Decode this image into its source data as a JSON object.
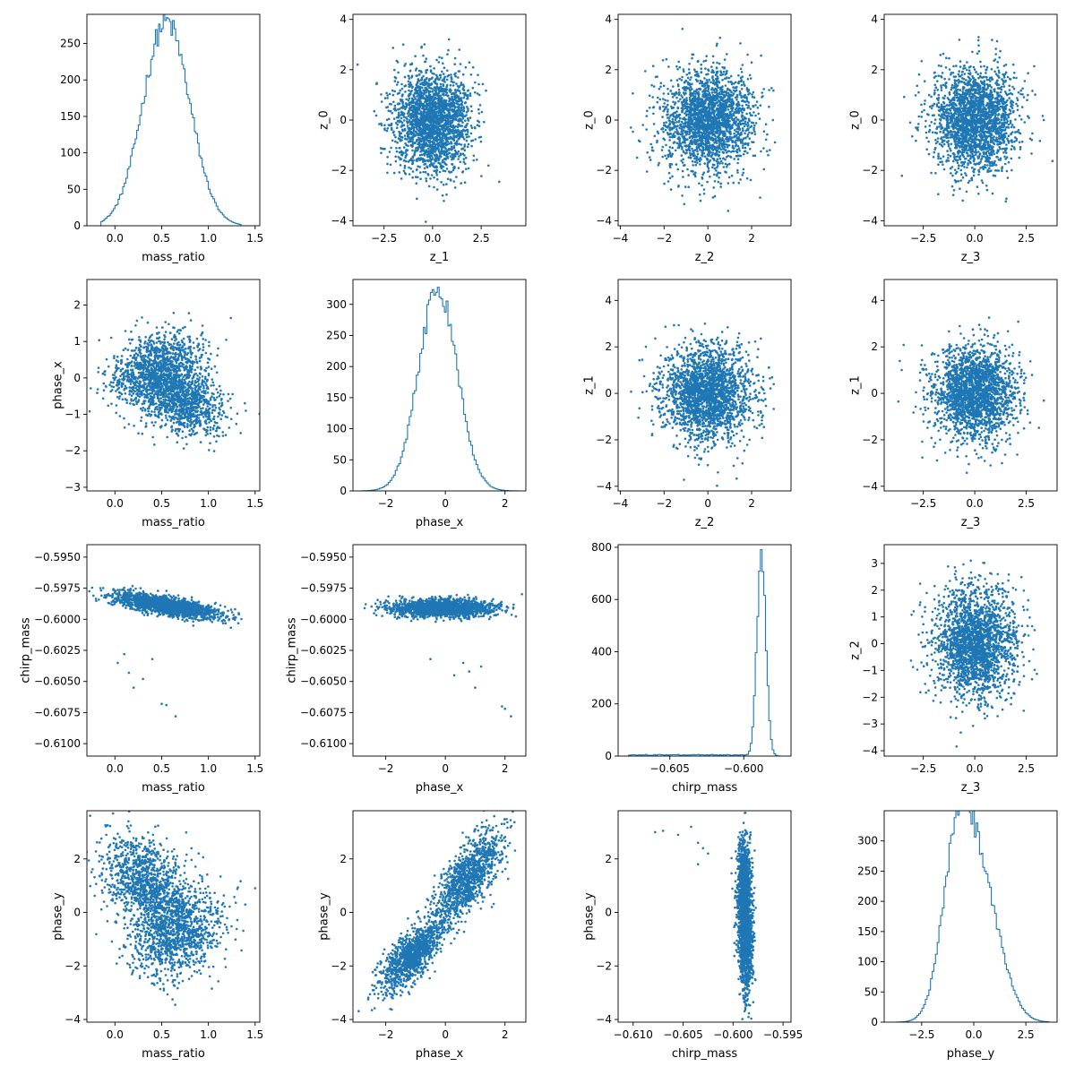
{
  "colors": {
    "series": "#1f77b4",
    "axis": "#000000",
    "background": "#ffffff"
  },
  "chart_data": {
    "type": "pairplot",
    "layout": {
      "rows": 4,
      "cols": 4
    },
    "variables": [
      "mass_ratio",
      "phase_x",
      "chirp_mass",
      "phase_y"
    ],
    "panels": [
      {
        "row": 0,
        "col": 0,
        "type": "histogram",
        "xlabel": "mass_ratio",
        "ylabel": "",
        "xlim": [
          -0.3,
          1.55
        ],
        "ylim": [
          0,
          290
        ],
        "xticks": [
          0.0,
          0.5,
          1.0,
          1.5
        ],
        "xtick_labels": [
          "0.0",
          "0.5",
          "1.0",
          "1.5"
        ],
        "yticks": [
          0,
          50,
          100,
          150,
          200,
          250
        ],
        "ytick_labels": [
          "0",
          "50",
          "100",
          "150",
          "200",
          "250"
        ],
        "hist": {
          "mean": 0.55,
          "std": 0.25,
          "peak": 280,
          "range": [
            -0.15,
            1.35
          ]
        }
      },
      {
        "row": 0,
        "col": 1,
        "type": "scatter",
        "xlabel": "z_1",
        "ylabel": "z_0",
        "xlim": [
          -4.1,
          4.8
        ],
        "ylim": [
          -4.2,
          4.2
        ],
        "xticks": [
          -2.5,
          0.0,
          2.5
        ],
        "xtick_labels": [
          "−2.5",
          "0.0",
          "2.5"
        ],
        "yticks": [
          -4,
          -2,
          0,
          2,
          4
        ],
        "ytick_labels": [
          "−4",
          "−2",
          "0",
          "2",
          "4"
        ],
        "cloud": {
          "kind": "gauss2d",
          "mx": 0,
          "sx": 1,
          "my": 0,
          "sy": 1,
          "n": 2200
        }
      },
      {
        "row": 0,
        "col": 2,
        "type": "scatter",
        "xlabel": "z_2",
        "ylabel": "z_0",
        "xlim": [
          -4.1,
          3.8
        ],
        "ylim": [
          -4.2,
          4.2
        ],
        "xticks": [
          -4,
          -2,
          0,
          2
        ],
        "xtick_labels": [
          "−4",
          "−2",
          "0",
          "2"
        ],
        "yticks": [
          -4,
          -2,
          0,
          2,
          4
        ],
        "ytick_labels": [
          "−4",
          "−2",
          "0",
          "2",
          "4"
        ],
        "cloud": {
          "kind": "gauss2d",
          "mx": 0,
          "sx": 1,
          "my": 0,
          "sy": 1,
          "n": 2200
        }
      },
      {
        "row": 0,
        "col": 3,
        "type": "scatter",
        "xlabel": "z_3",
        "ylabel": "z_0",
        "xlim": [
          -4.4,
          4.0
        ],
        "ylim": [
          -4.2,
          4.2
        ],
        "xticks": [
          -2.5,
          0.0,
          2.5
        ],
        "xtick_labels": [
          "−2.5",
          "0.0",
          "2.5"
        ],
        "yticks": [
          -4,
          -2,
          0,
          2,
          4
        ],
        "ytick_labels": [
          "−4",
          "−2",
          "0",
          "2",
          "4"
        ],
        "cloud": {
          "kind": "gauss2d",
          "mx": 0,
          "sx": 1,
          "my": 0,
          "sy": 1,
          "n": 2200
        }
      },
      {
        "row": 1,
        "col": 0,
        "type": "scatter",
        "xlabel": "mass_ratio",
        "ylabel": "phase_x",
        "xlim": [
          -0.3,
          1.55
        ],
        "ylim": [
          -3.1,
          2.7
        ],
        "xticks": [
          0.0,
          0.5,
          1.0,
          1.5
        ],
        "xtick_labels": [
          "0.0",
          "0.5",
          "1.0",
          "1.5"
        ],
        "yticks": [
          -3,
          -2,
          -1,
          0,
          1,
          2
        ],
        "ytick_labels": [
          "−3",
          "−2",
          "−1",
          "0",
          "1",
          "2"
        ],
        "cloud": {
          "kind": "bimodal",
          "n": 2200,
          "a": {
            "mx": 0.45,
            "sx": 0.25,
            "my": 0.3,
            "sy": 0.45,
            "slope": 0.6
          },
          "b": {
            "mx": 0.7,
            "sx": 0.22,
            "my": -0.6,
            "sy": 0.45,
            "slope": -0.7
          }
        }
      },
      {
        "row": 1,
        "col": 1,
        "type": "histogram",
        "xlabel": "phase_x",
        "ylabel": "",
        "xlim": [
          -3.1,
          2.7
        ],
        "ylim": [
          0,
          340
        ],
        "xticks": [
          -2,
          0,
          2
        ],
        "xtick_labels": [
          "−2",
          "0",
          "2"
        ],
        "yticks": [
          0,
          50,
          100,
          150,
          200,
          250,
          300
        ],
        "ytick_labels": [
          "0",
          "50",
          "100",
          "150",
          "200",
          "250",
          "300"
        ],
        "hist": {
          "mean": -0.25,
          "std": 0.65,
          "peak": 325,
          "range": [
            -2.8,
            2.5
          ]
        }
      },
      {
        "row": 1,
        "col": 2,
        "type": "scatter",
        "xlabel": "z_2",
        "ylabel": "z_1",
        "xlim": [
          -4.1,
          3.8
        ],
        "ylim": [
          -4.2,
          4.9
        ],
        "xticks": [
          -4,
          -2,
          0,
          2
        ],
        "xtick_labels": [
          "−4",
          "−2",
          "0",
          "2"
        ],
        "yticks": [
          -4,
          -2,
          0,
          2,
          4
        ],
        "ytick_labels": [
          "−4",
          "−2",
          "0",
          "2",
          "4"
        ],
        "cloud": {
          "kind": "gauss2d",
          "mx": 0,
          "sx": 1,
          "my": 0,
          "sy": 1,
          "n": 2200
        }
      },
      {
        "row": 1,
        "col": 3,
        "type": "scatter",
        "xlabel": "z_3",
        "ylabel": "z_1",
        "xlim": [
          -4.4,
          4.0
        ],
        "ylim": [
          -4.2,
          4.9
        ],
        "xticks": [
          -2.5,
          0.0,
          2.5
        ],
        "xtick_labels": [
          "−2.5",
          "0.0",
          "2.5"
        ],
        "yticks": [
          -4,
          -2,
          0,
          2,
          4
        ],
        "ytick_labels": [
          "−4",
          "−2",
          "0",
          "2",
          "4"
        ],
        "cloud": {
          "kind": "gauss2d",
          "mx": 0,
          "sx": 1,
          "my": 0,
          "sy": 1,
          "n": 2200
        }
      },
      {
        "row": 2,
        "col": 0,
        "type": "scatter",
        "xlabel": "mass_ratio",
        "ylabel": "chirp_mass",
        "xlim": [
          -0.3,
          1.55
        ],
        "ylim": [
          -0.611,
          -0.594
        ],
        "xticks": [
          0.0,
          0.5,
          1.0,
          1.5
        ],
        "xtick_labels": [
          "0.0",
          "0.5",
          "1.0",
          "1.5"
        ],
        "yticks": [
          -0.61,
          -0.6075,
          -0.605,
          -0.6025,
          -0.6,
          -0.5975,
          -0.595
        ],
        "ytick_labels": [
          "−0.6100",
          "−0.6075",
          "−0.6050",
          "−0.6025",
          "−0.6000",
          "−0.5975",
          "−0.5950"
        ],
        "cloud": {
          "kind": "band",
          "n": 1800,
          "mx": 0.55,
          "sx": 0.28,
          "my": -0.5989,
          "sy": 0.00035,
          "slope": -0.0012,
          "outliers": [
            [
              0.03,
              -0.6035
            ],
            [
              0.1,
              -0.6028
            ],
            [
              0.2,
              -0.6055
            ],
            [
              0.3,
              -0.6048
            ],
            [
              0.5,
              -0.6068
            ],
            [
              0.55,
              -0.6069
            ],
            [
              0.65,
              -0.6078
            ],
            [
              0.4,
              -0.6032
            ],
            [
              0.15,
              -0.6043
            ]
          ]
        }
      },
      {
        "row": 2,
        "col": 1,
        "type": "scatter",
        "xlabel": "phase_x",
        "ylabel": "chirp_mass",
        "xlim": [
          -3.1,
          2.7
        ],
        "ylim": [
          -0.611,
          -0.594
        ],
        "xticks": [
          -2,
          0,
          2
        ],
        "xtick_labels": [
          "−2",
          "0",
          "2"
        ],
        "yticks": [
          -0.61,
          -0.6075,
          -0.605,
          -0.6025,
          -0.6,
          -0.5975,
          -0.595
        ],
        "ytick_labels": [
          "−0.6100",
          "−0.6075",
          "−0.6050",
          "−0.6025",
          "−0.6000",
          "−0.5975",
          "−0.5950"
        ],
        "cloud": {
          "kind": "band",
          "n": 1800,
          "mx": -0.1,
          "sx": 0.85,
          "my": -0.5991,
          "sy": 0.00035,
          "slope": 0.0,
          "outliers": [
            [
              0.6,
              -0.6035
            ],
            [
              0.8,
              -0.6042
            ],
            [
              1.0,
              -0.6055
            ],
            [
              1.2,
              -0.6038
            ],
            [
              1.9,
              -0.607
            ],
            [
              2.0,
              -0.6072
            ],
            [
              2.2,
              -0.6078
            ],
            [
              0.3,
              -0.6045
            ],
            [
              -0.5,
              -0.6032
            ]
          ]
        }
      },
      {
        "row": 2,
        "col": 2,
        "type": "histogram",
        "xlabel": "chirp_mass",
        "ylabel": "",
        "xlim": [
          -0.6085,
          -0.5968
        ],
        "ylim": [
          0,
          810
        ],
        "xticks": [
          -0.605,
          -0.6
        ],
        "xtick_labels": [
          "−0.605",
          "−0.600"
        ],
        "yticks": [
          0,
          200,
          400,
          600,
          800
        ],
        "ytick_labels": [
          "0",
          "200",
          "400",
          "600",
          "800"
        ],
        "hist": {
          "mean": -0.5988,
          "std": 0.0003,
          "peak": 770,
          "range": [
            -0.6078,
            -0.5975
          ],
          "tail": true
        }
      },
      {
        "row": 2,
        "col": 3,
        "type": "scatter",
        "xlabel": "z_3",
        "ylabel": "z_2",
        "xlim": [
          -4.4,
          4.0
        ],
        "ylim": [
          -4.2,
          3.7
        ],
        "xticks": [
          -2.5,
          0.0,
          2.5
        ],
        "xtick_labels": [
          "−2.5",
          "0.0",
          "2.5"
        ],
        "yticks": [
          -4,
          -3,
          -2,
          -1,
          0,
          1,
          2,
          3
        ],
        "ytick_labels": [
          "−4",
          "−3",
          "−2",
          "−1",
          "0",
          "1",
          "2",
          "3"
        ],
        "cloud": {
          "kind": "gauss2d",
          "mx": 0,
          "sx": 1,
          "my": 0,
          "sy": 1,
          "n": 2200
        }
      },
      {
        "row": 3,
        "col": 0,
        "type": "scatter",
        "xlabel": "mass_ratio",
        "ylabel": "phase_y",
        "xlim": [
          -0.3,
          1.55
        ],
        "ylim": [
          -4.1,
          3.8
        ],
        "xticks": [
          0.0,
          0.5,
          1.0,
          1.5
        ],
        "xtick_labels": [
          "0.0",
          "0.5",
          "1.0",
          "1.5"
        ],
        "yticks": [
          -4,
          -2,
          0,
          2
        ],
        "ytick_labels": [
          "−4",
          "−2",
          "0",
          "2"
        ],
        "cloud": {
          "kind": "bimodal",
          "n": 2200,
          "a": {
            "mx": 0.35,
            "sx": 0.25,
            "my": 1.1,
            "sy": 0.8,
            "slope": -1.5
          },
          "b": {
            "mx": 0.65,
            "sx": 0.25,
            "my": -0.8,
            "sy": 0.8,
            "slope": 0.5
          }
        }
      },
      {
        "row": 3,
        "col": 1,
        "type": "scatter",
        "xlabel": "phase_x",
        "ylabel": "phase_y",
        "xlim": [
          -3.1,
          2.7
        ],
        "ylim": [
          -4.1,
          3.8
        ],
        "xticks": [
          -2,
          0,
          2
        ],
        "xtick_labels": [
          "−2",
          "0",
          "2"
        ],
        "yticks": [
          -4,
          -2,
          0,
          2
        ],
        "ytick_labels": [
          "−4",
          "−2",
          "0",
          "2"
        ],
        "cloud": {
          "kind": "bimodal",
          "n": 2200,
          "a": {
            "mx": 0.75,
            "sx": 0.55,
            "my": 1.3,
            "sy": 0.6,
            "slope": 1.1
          },
          "b": {
            "mx": -1.1,
            "sx": 0.55,
            "my": -1.6,
            "sy": 0.45,
            "slope": 0.9
          }
        }
      },
      {
        "row": 3,
        "col": 2,
        "type": "scatter",
        "xlabel": "chirp_mass",
        "ylabel": "phase_y",
        "xlim": [
          -0.6115,
          -0.5942
        ],
        "ylim": [
          -4.1,
          3.8
        ],
        "xticks": [
          -0.61,
          -0.605,
          -0.6,
          -0.595
        ],
        "xtick_labels": [
          "−0.610",
          "−0.605",
          "−0.600",
          "−0.595"
        ],
        "yticks": [
          -4,
          -2,
          0,
          2
        ],
        "ytick_labels": [
          "−4",
          "−2",
          "0",
          "2"
        ],
        "cloud": {
          "kind": "bimodal",
          "n": 2000,
          "a": {
            "mx": -0.5989,
            "sx": 0.00035,
            "my": 1.0,
            "sy": 0.9,
            "slope": 0
          },
          "b": {
            "mx": -0.5987,
            "sx": 0.00035,
            "my": -1.2,
            "sy": 0.9,
            "slope": 0
          },
          "outliers": [
            [
              -0.6078,
              3.0
            ],
            [
              -0.607,
              3.05
            ],
            [
              -0.6042,
              3.2
            ],
            [
              -0.6035,
              2.6
            ],
            [
              -0.603,
              2.4
            ],
            [
              -0.6025,
              2.2
            ],
            [
              -0.6055,
              2.9
            ],
            [
              -0.6035,
              1.8
            ]
          ]
        }
      },
      {
        "row": 3,
        "col": 3,
        "type": "histogram",
        "xlabel": "phase_y",
        "ylabel": "",
        "xlim": [
          -4.3,
          4.0
        ],
        "ylim": [
          0,
          350
        ],
        "xticks": [
          -2.5,
          0.0,
          2.5
        ],
        "xtick_labels": [
          "−2.5",
          "0.0",
          "2.5"
        ],
        "yticks": [
          0,
          50,
          100,
          150,
          200,
          250,
          300
        ],
        "ytick_labels": [
          "0",
          "50",
          "100",
          "150",
          "200",
          "250",
          "300"
        ],
        "hist": {
          "mean": -0.35,
          "std": 1.0,
          "peak": 335,
          "range": [
            -3.7,
            3.6
          ],
          "bimodal": true
        }
      }
    ]
  }
}
